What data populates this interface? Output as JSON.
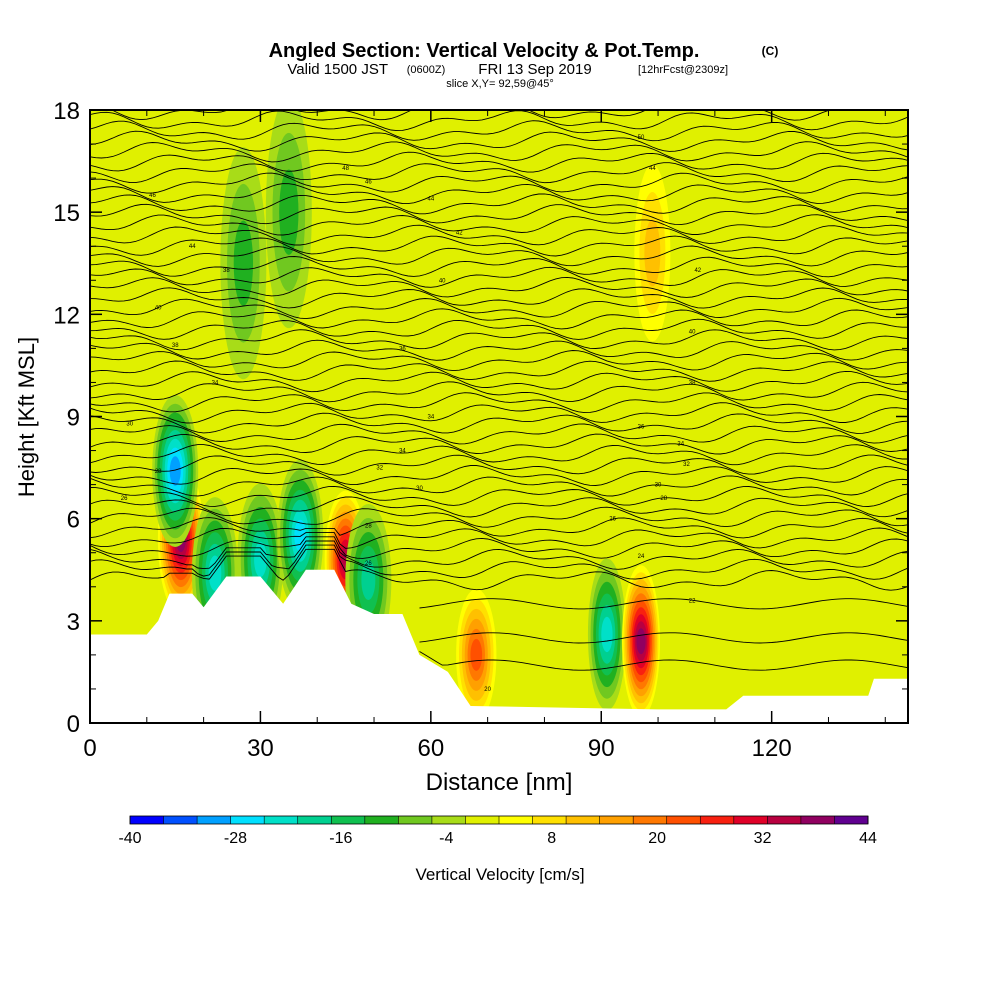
{
  "header": {
    "title": "Angled Section: Vertical Velocity & Pot.Temp.",
    "title_units": "(C)",
    "valid_prefix": "Valid 1500 JST",
    "valid_utc": "(0600Z)",
    "valid_date": "FRI 13 Sep 2019",
    "forecast_info": "[12hrFcst@2309z]",
    "slice": "slice X,Y= 92,59@45°"
  },
  "chart_data": {
    "type": "heatmap",
    "xlabel": "Distance [nm]",
    "ylabel": "Height [Kft MSL]",
    "xlim": [
      0,
      144
    ],
    "ylim": [
      0,
      18
    ],
    "x_ticks": [
      0,
      30,
      60,
      90,
      120
    ],
    "y_ticks": [
      0,
      3,
      6,
      9,
      12,
      15,
      18
    ],
    "colorbar": {
      "label": "Vertical Velocity [cm/s]",
      "range": [
        -40,
        44
      ],
      "step": 4,
      "tick_labels": [
        "-40",
        "-28",
        "-16",
        "-4",
        "8",
        "20",
        "32",
        "44"
      ],
      "colors": [
        "#0000ff",
        "#0050ff",
        "#00a0ff",
        "#00e0ff",
        "#00e0c8",
        "#00d090",
        "#10c050",
        "#20b020",
        "#70c820",
        "#a8dc18",
        "#e0f000",
        "#ffff00",
        "#ffe000",
        "#ffc000",
        "#ffa000",
        "#ff7800",
        "#ff5000",
        "#f82010",
        "#e00028",
        "#b80040",
        "#900060",
        "#600090"
      ]
    },
    "background_velocity": 0,
    "features": [
      {
        "name": "updraft",
        "x": 16,
        "y": 5.4,
        "value": 40
      },
      {
        "name": "downdraft",
        "x": 15,
        "y": 7.4,
        "value": -30
      },
      {
        "name": "downdraft",
        "x": 22,
        "y": 4.4,
        "value": -24
      },
      {
        "name": "downdraft",
        "x": 30,
        "y": 4.8,
        "value": -22
      },
      {
        "name": "downdraft",
        "x": 37,
        "y": 5.5,
        "value": -28
      },
      {
        "name": "updraft",
        "x": 45,
        "y": 4.8,
        "value": 38
      },
      {
        "name": "downdraft",
        "x": 49,
        "y": 4.2,
        "value": -20
      },
      {
        "name": "updraft",
        "x": 68,
        "y": 2.0,
        "value": 26
      },
      {
        "name": "downdraft",
        "x": 91,
        "y": 2.6,
        "value": -22
      },
      {
        "name": "updraft",
        "x": 97,
        "y": 2.4,
        "value": 40
      },
      {
        "name": "updraft",
        "x": 99,
        "y": 13.8,
        "value": 14
      },
      {
        "name": "downdraft",
        "x": 27,
        "y": 13.5,
        "value": -12
      },
      {
        "name": "downdraft",
        "x": 35,
        "y": 15.0,
        "value": -10
      }
    ],
    "terrain_profile": [
      {
        "x": 0,
        "y": 2.6
      },
      {
        "x": 10,
        "y": 2.6
      },
      {
        "x": 12,
        "y": 3.0
      },
      {
        "x": 14,
        "y": 3.8
      },
      {
        "x": 18,
        "y": 3.8
      },
      {
        "x": 20,
        "y": 3.4
      },
      {
        "x": 24,
        "y": 4.3
      },
      {
        "x": 30,
        "y": 4.3
      },
      {
        "x": 34,
        "y": 3.5
      },
      {
        "x": 38,
        "y": 4.5
      },
      {
        "x": 43,
        "y": 4.5
      },
      {
        "x": 46,
        "y": 3.5
      },
      {
        "x": 50,
        "y": 3.2
      },
      {
        "x": 55,
        "y": 3.2
      },
      {
        "x": 58,
        "y": 2.0
      },
      {
        "x": 63,
        "y": 1.5
      },
      {
        "x": 67,
        "y": 0.5
      },
      {
        "x": 100,
        "y": 0.4
      },
      {
        "x": 112,
        "y": 0.4
      },
      {
        "x": 115,
        "y": 0.8
      },
      {
        "x": 137,
        "y": 0.8
      },
      {
        "x": 138,
        "y": 1.3
      },
      {
        "x": 144,
        "y": 1.3
      }
    ],
    "contour_series": {
      "name": "Potential Temperature",
      "count": 46,
      "low_levels": [
        3.5,
        2.5,
        1.7
      ],
      "annotations": [
        {
          "x": 11,
          "y": 15.5,
          "label": "46"
        },
        {
          "x": 18,
          "y": 14.0,
          "label": "44"
        },
        {
          "x": 24,
          "y": 13.3,
          "label": "38"
        },
        {
          "x": 12,
          "y": 12.2,
          "label": "40"
        },
        {
          "x": 15,
          "y": 11.1,
          "label": "38"
        },
        {
          "x": 22,
          "y": 10.0,
          "label": "34"
        },
        {
          "x": 7,
          "y": 8.8,
          "label": "30"
        },
        {
          "x": 12,
          "y": 7.4,
          "label": "28"
        },
        {
          "x": 6,
          "y": 6.6,
          "label": "26"
        },
        {
          "x": 45,
          "y": 16.3,
          "label": "48"
        },
        {
          "x": 49,
          "y": 15.9,
          "label": "46"
        },
        {
          "x": 60,
          "y": 15.4,
          "label": "44"
        },
        {
          "x": 65,
          "y": 14.4,
          "label": "42"
        },
        {
          "x": 62,
          "y": 13.0,
          "label": "40"
        },
        {
          "x": 55,
          "y": 11.0,
          "label": "36"
        },
        {
          "x": 60,
          "y": 9.0,
          "label": "34"
        },
        {
          "x": 55,
          "y": 8.0,
          "label": "34"
        },
        {
          "x": 51,
          "y": 7.5,
          "label": "32"
        },
        {
          "x": 58,
          "y": 6.9,
          "label": "30"
        },
        {
          "x": 49,
          "y": 5.8,
          "label": "28"
        },
        {
          "x": 49,
          "y": 4.7,
          "label": "26"
        },
        {
          "x": 97,
          "y": 17.2,
          "label": "50"
        },
        {
          "x": 99,
          "y": 16.3,
          "label": "44"
        },
        {
          "x": 107,
          "y": 13.3,
          "label": "42"
        },
        {
          "x": 106,
          "y": 11.5,
          "label": "40"
        },
        {
          "x": 106,
          "y": 10.0,
          "label": "38"
        },
        {
          "x": 97,
          "y": 8.7,
          "label": "36"
        },
        {
          "x": 104,
          "y": 8.2,
          "label": "34"
        },
        {
          "x": 105,
          "y": 7.6,
          "label": "32"
        },
        {
          "x": 100,
          "y": 7.0,
          "label": "30"
        },
        {
          "x": 101,
          "y": 6.6,
          "label": "28"
        },
        {
          "x": 92,
          "y": 6.0,
          "label": "26"
        },
        {
          "x": 97,
          "y": 4.9,
          "label": "24"
        },
        {
          "x": 106,
          "y": 3.6,
          "label": "22"
        },
        {
          "x": 70,
          "y": 1.0,
          "label": "20"
        }
      ]
    },
    "grid": false,
    "legend": "bottom colorbar"
  }
}
